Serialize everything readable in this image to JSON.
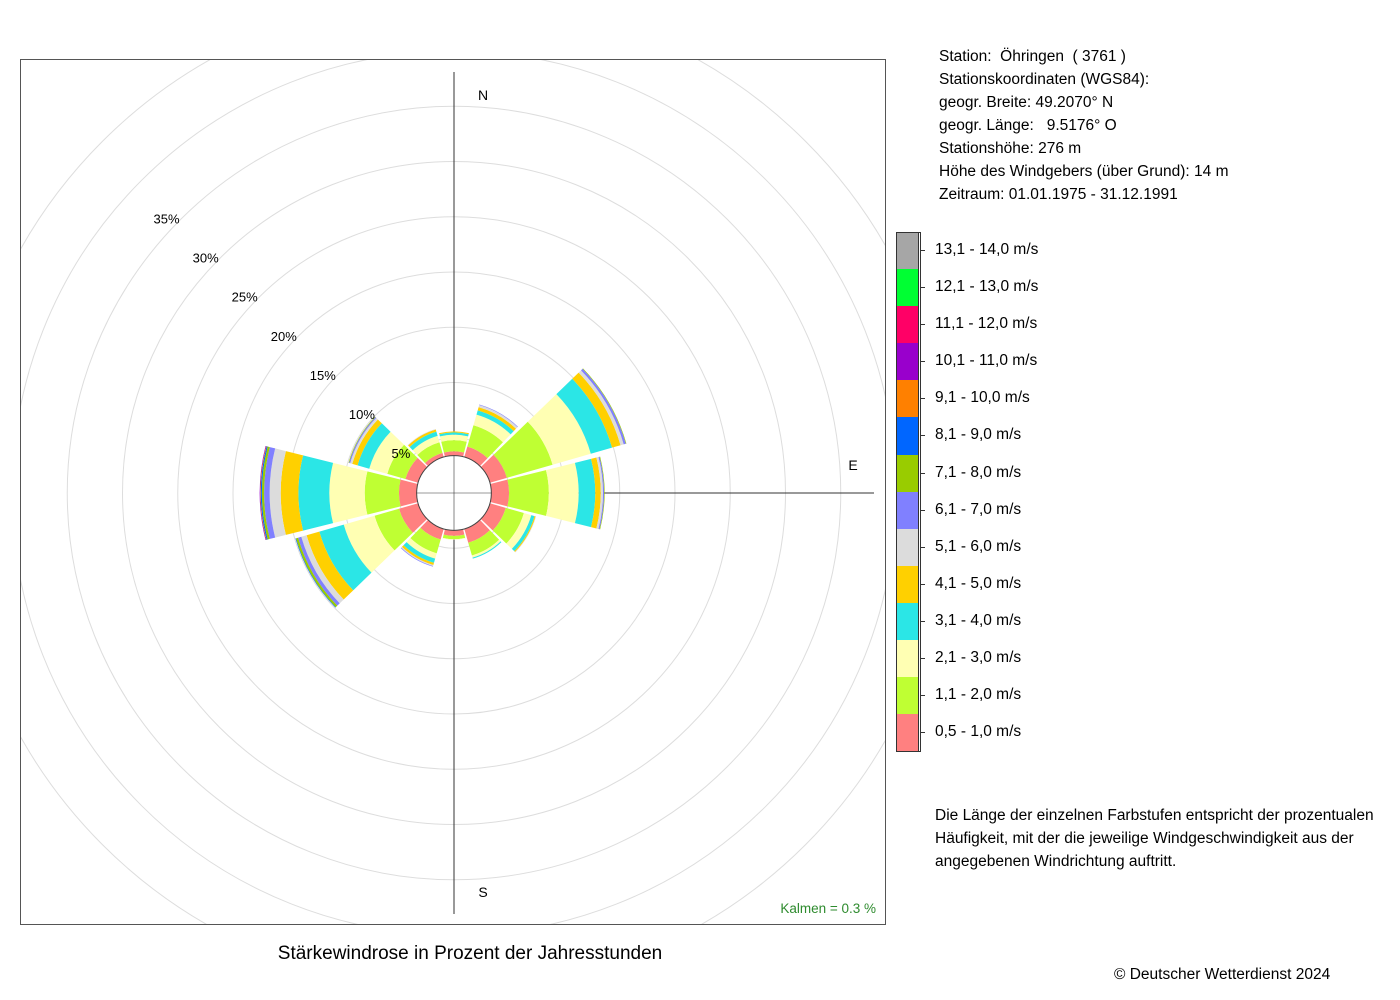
{
  "chart_data": {
    "type": "windrose",
    "title": "Stärkewindrose in Prozent der Jahresstunden",
    "radial_axis": {
      "max": 35,
      "ticks": [
        "5%",
        "10%",
        "15%",
        "20%",
        "25%",
        "30%",
        "35%"
      ],
      "tick_values": [
        5,
        10,
        15,
        20,
        25,
        30,
        35
      ]
    },
    "directions": {
      "north": "N",
      "east": "E",
      "south": "S"
    },
    "direction_angles_deg": [
      0,
      30,
      60,
      90,
      120,
      150,
      180,
      210,
      240,
      270,
      300,
      330
    ],
    "speed_classes": [
      {
        "label": "0,5 - 1,0 m/s",
        "color": "#FF8080"
      },
      {
        "label": "1,1 - 2,0 m/s",
        "color": "#BFFF33"
      },
      {
        "label": "2,1 - 3,0 m/s",
        "color": "#FFFFB3"
      },
      {
        "label": "3,1 - 4,0 m/s",
        "color": "#2BE6E6"
      },
      {
        "label": "4,1 - 5,0 m/s",
        "color": "#FFD000"
      },
      {
        "label": "5,1 - 6,0 m/s",
        "color": "#DCDCDC"
      },
      {
        "label": "6,1 - 7,0 m/s",
        "color": "#8080FF"
      },
      {
        "label": "7,1 - 8,0 m/s",
        "color": "#99CC00"
      },
      {
        "label": "8,1 - 9,0 m/s",
        "color": "#0066FF"
      },
      {
        "label": "9,1 - 10,0 m/s",
        "color": "#FF8000"
      },
      {
        "label": "10,1 - 11,0 m/s",
        "color": "#9900CC"
      },
      {
        "label": "11,1 - 12,0 m/s",
        "color": "#FF0066"
      },
      {
        "label": "12,1 - 13,0 m/s",
        "color": "#00FF33"
      },
      {
        "label": "13,1 - 14,0 m/s",
        "color": "#A6A6A6"
      }
    ],
    "series_by_direction_percent": [
      [
        0.4,
        1.0,
        0.5,
        0.2,
        0.1,
        0,
        0,
        0,
        0,
        0,
        0,
        0,
        0,
        0
      ],
      [
        1.0,
        2.0,
        1.0,
        0.4,
        0.3,
        0.2,
        0.05,
        0,
        0,
        0,
        0,
        0,
        0,
        0
      ],
      [
        1.6,
        4.3,
        3.6,
        2.0,
        0.8,
        0.3,
        0.2,
        0.05,
        0,
        0,
        0,
        0,
        0,
        0
      ],
      [
        1.6,
        3.6,
        2.7,
        1.5,
        0.5,
        0.2,
        0.1,
        0.05,
        0,
        0,
        0,
        0,
        0,
        0
      ],
      [
        1.5,
        1.7,
        0.7,
        0.3,
        0.1,
        0.05,
        0,
        0,
        0,
        0,
        0,
        0,
        0,
        0
      ],
      [
        1.3,
        1.2,
        0.2,
        0.1,
        0,
        0,
        0,
        0,
        0,
        0,
        0,
        0,
        0,
        0
      ],
      [
        0.5,
        0.3,
        0.05,
        0,
        0,
        0,
        0,
        0,
        0,
        0,
        0,
        0,
        0,
        0
      ],
      [
        1.0,
        1.3,
        0.5,
        0.4,
        0.2,
        0.1,
        0.05,
        0,
        0,
        0,
        0,
        0,
        0,
        0
      ],
      [
        1.8,
        2.3,
        2.9,
        2.3,
        1.2,
        0.5,
        0.3,
        0.2,
        0.05,
        0,
        0,
        0,
        0,
        0
      ],
      [
        1.6,
        3.1,
        3.2,
        2.8,
        1.6,
        1.0,
        0.5,
        0.2,
        0.1,
        0.05,
        0.05,
        0,
        0,
        0
      ],
      [
        1.2,
        1.7,
        1.7,
        1.1,
        0.5,
        0.2,
        0.1,
        0.05,
        0,
        0,
        0,
        0,
        0,
        0
      ],
      [
        0.4,
        1.0,
        0.6,
        0.4,
        0.2,
        0.05,
        0,
        0,
        0,
        0,
        0,
        0,
        0,
        0
      ]
    ],
    "inner_circle_radius_percent": 1.3,
    "calm": "Kalmen  =  0.3 %",
    "grid_color": "#DDDDDD",
    "calm_color": "#2E8B2E"
  },
  "station_info": [
    "Station:  Öhringen  ( 3761 )",
    "Stationskoordinaten (WGS84):",
    "geogr. Breite: 49.2070° N",
    "geogr. Länge:   9.5176° O",
    "Stationshöhe: 276 m",
    "Höhe des Windgebers (über Grund): 14 m",
    "Zeitraum: 01.01.1975 - 31.12.1991"
  ],
  "note": "Die Länge der einzelnen Farbstufen entspricht der prozentualen Häufigkeit, mit der die jeweilige Windgeschwindigkeit aus der angegebenen Windrichtung auftritt.",
  "copyright": "© Deutscher Wetterdienst  2024"
}
